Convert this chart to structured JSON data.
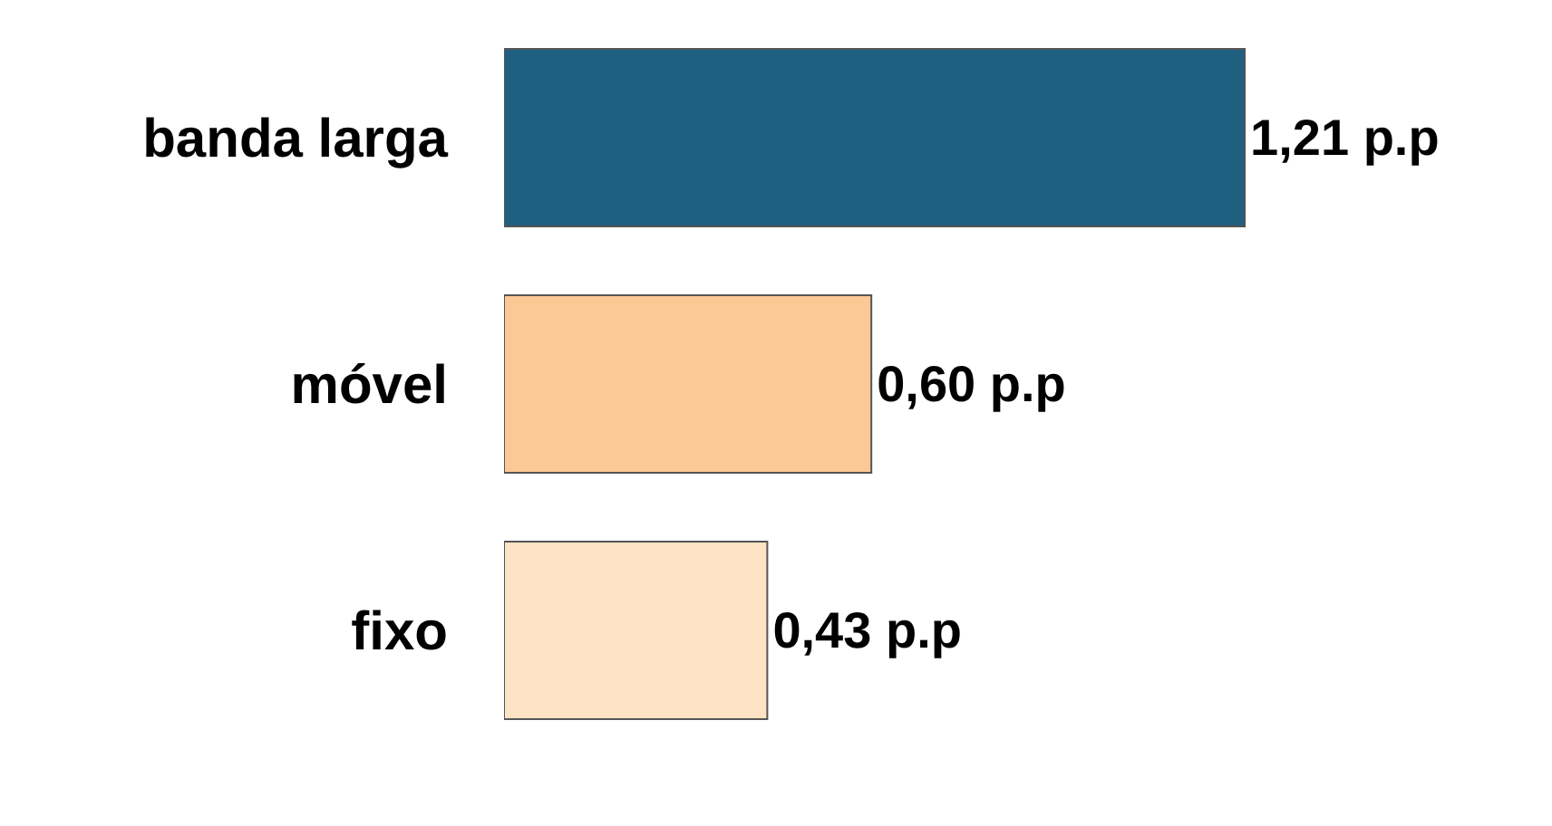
{
  "chart_data": {
    "type": "bar",
    "orientation": "horizontal",
    "categories": [
      "banda larga",
      "móvel",
      "fixo"
    ],
    "values": [
      1.21,
      0.6,
      0.43
    ],
    "colors": [
      "#1f5f80",
      "#fcc896",
      "#fde3c4"
    ],
    "value_labels": [
      "1,21 p.p",
      "0,60 p.p",
      "0,43 p.p"
    ]
  }
}
